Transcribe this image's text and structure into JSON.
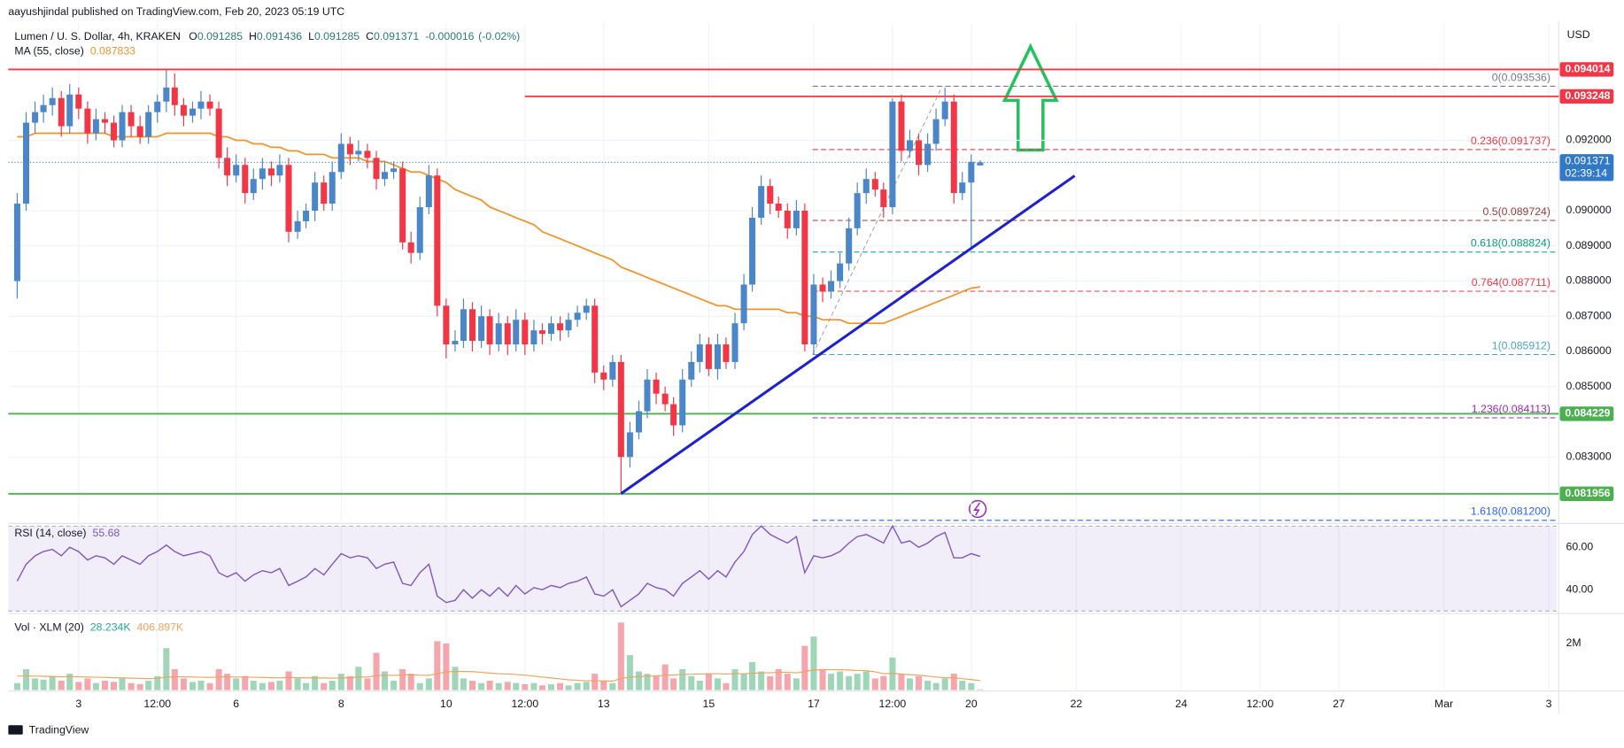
{
  "header": "aayushjindal published on TradingView.com, Feb 20, 2023 05:19 UTC",
  "footer": "TradingView",
  "chart_data": {
    "type": "candlestick",
    "title": "Lumen / U. S. Dollar, 4h, KRAKEN",
    "y_axis_label": "USD",
    "up_color": "#4a86c8",
    "down_color": "#f23645",
    "ohlc_prefixes": [
      "O",
      "H",
      "L",
      "C"
    ],
    "change": -1.6e-05,
    "change_pct_label": "(-0.02%)",
    "current_time_label": "02:39:14",
    "x": [
      1.83,
      2,
      2.17,
      2.33,
      2.5,
      2.67,
      2.83,
      3,
      3.17,
      3.33,
      3.5,
      3.67,
      3.83,
      4,
      4.17,
      4.33,
      4.5,
      4.67,
      4.83,
      5,
      5.17,
      5.33,
      5.5,
      5.67,
      5.83,
      6,
      6.17,
      6.33,
      6.5,
      6.67,
      6.83,
      7,
      7.17,
      7.33,
      7.5,
      7.67,
      7.83,
      8,
      8.17,
      8.33,
      8.5,
      8.67,
      8.83,
      9,
      9.17,
      9.33,
      9.5,
      9.67,
      9.83,
      10,
      10.17,
      10.33,
      10.5,
      10.67,
      10.83,
      11,
      11.17,
      11.33,
      11.5,
      11.67,
      11.83,
      12,
      12.17,
      12.33,
      12.5,
      12.67,
      12.83,
      13,
      13.17,
      13.33,
      13.5,
      13.67,
      13.83,
      14,
      14.17,
      14.33,
      14.5,
      14.67,
      14.83,
      15,
      15.17,
      15.33,
      15.5,
      15.67,
      15.83,
      16,
      16.17,
      16.33,
      16.5,
      16.67,
      16.83,
      17,
      17.17,
      17.33,
      17.5,
      17.67,
      17.83,
      18,
      18.17,
      18.33,
      18.5,
      18.67,
      18.83,
      19,
      19.17,
      19.33,
      19.5,
      19.67,
      19.83,
      20,
      20.17
    ],
    "open": [
      0.088,
      0.0902,
      0.0925,
      0.0928,
      0.093,
      0.0932,
      0.0924,
      0.0933,
      0.0929,
      0.0922,
      0.0926,
      0.0925,
      0.092,
      0.0928,
      0.0924,
      0.0921,
      0.0928,
      0.0931,
      0.0935,
      0.093,
      0.0927,
      0.0929,
      0.0931,
      0.0929,
      0.0915,
      0.091,
      0.0913,
      0.0905,
      0.0909,
      0.0912,
      0.091,
      0.0913,
      0.0894,
      0.0897,
      0.09,
      0.0908,
      0.0902,
      0.0911,
      0.0919,
      0.0916,
      0.0917,
      0.0915,
      0.0909,
      0.0911,
      0.0912,
      0.0891,
      0.0888,
      0.0901,
      0.091,
      0.0873,
      0.0862,
      0.0863,
      0.0872,
      0.0863,
      0.087,
      0.0862,
      0.0868,
      0.0862,
      0.0869,
      0.0862,
      0.0866,
      0.0865,
      0.0868,
      0.0866,
      0.0869,
      0.0871,
      0.0873,
      0.0854,
      0.0852,
      0.0857,
      0.083,
      0.0837,
      0.0843,
      0.0852,
      0.0848,
      0.0845,
      0.0839,
      0.0852,
      0.0857,
      0.0862,
      0.0855,
      0.0862,
      0.0857,
      0.0868,
      0.0879,
      0.0898,
      0.0907,
      0.0902,
      0.09,
      0.0895,
      0.09,
      0.0862,
      0.0879,
      0.0877,
      0.088,
      0.0885,
      0.0895,
      0.0905,
      0.0909,
      0.0906,
      0.0901,
      0.0931,
      0.0917,
      0.092,
      0.0913,
      0.0919,
      0.0926,
      0.0931,
      0.0905,
      0.0908,
      0.091285
    ],
    "high": [
      0.0905,
      0.0928,
      0.0931,
      0.0933,
      0.0935,
      0.0934,
      0.0936,
      0.0935,
      0.0931,
      0.0929,
      0.0928,
      0.0927,
      0.093,
      0.093,
      0.0927,
      0.093,
      0.0933,
      0.094,
      0.0939,
      0.0932,
      0.0931,
      0.0934,
      0.0933,
      0.0931,
      0.0918,
      0.0916,
      0.0915,
      0.0912,
      0.0915,
      0.0914,
      0.0916,
      0.0915,
      0.09,
      0.0902,
      0.0911,
      0.091,
      0.0914,
      0.0922,
      0.0921,
      0.092,
      0.0919,
      0.0917,
      0.0914,
      0.0914,
      0.0914,
      0.0894,
      0.0904,
      0.0913,
      0.0912,
      0.0875,
      0.0866,
      0.0875,
      0.0874,
      0.0873,
      0.0872,
      0.0871,
      0.087,
      0.0872,
      0.0871,
      0.0869,
      0.0868,
      0.087,
      0.087,
      0.0871,
      0.0873,
      0.0875,
      0.0875,
      0.0856,
      0.0859,
      0.0859,
      0.084,
      0.0846,
      0.0855,
      0.0854,
      0.085,
      0.0847,
      0.0855,
      0.086,
      0.0865,
      0.0864,
      0.0865,
      0.0864,
      0.0871,
      0.0882,
      0.0901,
      0.091,
      0.0909,
      0.0904,
      0.0902,
      0.0903,
      0.0902,
      0.0882,
      0.0881,
      0.0883,
      0.0888,
      0.0898,
      0.0908,
      0.0912,
      0.0911,
      0.0908,
      0.0932,
      0.0933,
      0.0923,
      0.0922,
      0.0922,
      0.0929,
      0.0935,
      0.0933,
      0.0911,
      0.0916,
      0.091436
    ],
    "low": [
      0.0875,
      0.09,
      0.0922,
      0.0925,
      0.0927,
      0.0921,
      0.0922,
      0.0926,
      0.0919,
      0.092,
      0.0922,
      0.0918,
      0.0918,
      0.0921,
      0.0919,
      0.0919,
      0.0925,
      0.0928,
      0.0927,
      0.0924,
      0.0925,
      0.0926,
      0.0927,
      0.0912,
      0.0907,
      0.0908,
      0.0902,
      0.0903,
      0.0906,
      0.0907,
      0.0908,
      0.0891,
      0.0892,
      0.0895,
      0.0897,
      0.09,
      0.09,
      0.0909,
      0.0913,
      0.0914,
      0.0912,
      0.0906,
      0.0907,
      0.0909,
      0.0889,
      0.0885,
      0.0886,
      0.0899,
      0.087,
      0.0858,
      0.086,
      0.0861,
      0.086,
      0.0861,
      0.0859,
      0.086,
      0.0859,
      0.086,
      0.0859,
      0.086,
      0.0862,
      0.0863,
      0.0863,
      0.0864,
      0.0867,
      0.0869,
      0.0851,
      0.0849,
      0.085,
      0.08196,
      0.0827,
      0.0835,
      0.0841,
      0.0845,
      0.0843,
      0.0836,
      0.0837,
      0.085,
      0.0854,
      0.0853,
      0.0852,
      0.0855,
      0.0855,
      0.0866,
      0.0877,
      0.0896,
      0.0899,
      0.0898,
      0.0892,
      0.0893,
      0.086,
      0.0859,
      0.0874,
      0.0875,
      0.0878,
      0.0883,
      0.0893,
      0.0902,
      0.0904,
      0.0898,
      0.0899,
      0.0914,
      0.0915,
      0.091,
      0.0911,
      0.0917,
      0.0924,
      0.0902,
      0.0903,
      0.0889,
      0.091285
    ],
    "close": [
      0.0902,
      0.0925,
      0.0928,
      0.093,
      0.0932,
      0.0924,
      0.0933,
      0.0929,
      0.0922,
      0.0926,
      0.0925,
      0.092,
      0.0928,
      0.0924,
      0.0921,
      0.0928,
      0.0931,
      0.0935,
      0.093,
      0.0927,
      0.0929,
      0.0931,
      0.0929,
      0.0915,
      0.091,
      0.0913,
      0.0905,
      0.0909,
      0.0912,
      0.091,
      0.0913,
      0.0894,
      0.0897,
      0.09,
      0.0908,
      0.0902,
      0.0911,
      0.0919,
      0.0916,
      0.0917,
      0.0915,
      0.0909,
      0.0911,
      0.0912,
      0.0891,
      0.0888,
      0.0901,
      0.091,
      0.0873,
      0.0862,
      0.0863,
      0.0872,
      0.0863,
      0.087,
      0.0862,
      0.0868,
      0.0862,
      0.0869,
      0.0862,
      0.0866,
      0.0865,
      0.0868,
      0.0866,
      0.0869,
      0.0871,
      0.0873,
      0.0854,
      0.0852,
      0.0857,
      0.083,
      0.0837,
      0.0843,
      0.0852,
      0.0848,
      0.0845,
      0.0839,
      0.0852,
      0.0857,
      0.0862,
      0.0855,
      0.0862,
      0.0857,
      0.0868,
      0.0879,
      0.0898,
      0.0907,
      0.0902,
      0.09,
      0.0895,
      0.09,
      0.0862,
      0.0879,
      0.0877,
      0.088,
      0.0885,
      0.0895,
      0.0905,
      0.0909,
      0.0906,
      0.0901,
      0.0931,
      0.0917,
      0.092,
      0.0913,
      0.0919,
      0.0926,
      0.0931,
      0.0905,
      0.0908,
      0.091387,
      0.091371
    ],
    "ma": {
      "name": "MA (55, close)",
      "color": "#f0932b",
      "values": [
        0.0921,
        0.0921,
        0.0922,
        0.0922,
        0.0922,
        0.0922,
        0.0922,
        0.0922,
        0.0922,
        0.0922,
        0.0922,
        0.0921,
        0.0921,
        0.0921,
        0.0921,
        0.0921,
        0.0921,
        0.0922,
        0.0922,
        0.0922,
        0.0922,
        0.0922,
        0.0922,
        0.0921,
        0.0921,
        0.092,
        0.092,
        0.0919,
        0.0919,
        0.0918,
        0.0918,
        0.0917,
        0.0917,
        0.0916,
        0.0916,
        0.0916,
        0.0915,
        0.0915,
        0.0915,
        0.0915,
        0.0914,
        0.0914,
        0.0914,
        0.0913,
        0.0912,
        0.0911,
        0.0911,
        0.091,
        0.0909,
        0.0908,
        0.0906,
        0.0905,
        0.0904,
        0.0903,
        0.0901,
        0.09,
        0.0899,
        0.0898,
        0.0897,
        0.0896,
        0.0894,
        0.0893,
        0.0892,
        0.0891,
        0.089,
        0.0889,
        0.0888,
        0.0887,
        0.0886,
        0.0884,
        0.0883,
        0.0882,
        0.0881,
        0.088,
        0.0879,
        0.0878,
        0.0877,
        0.0876,
        0.0875,
        0.0874,
        0.0873,
        0.0873,
        0.0872,
        0.0872,
        0.0872,
        0.0872,
        0.0872,
        0.0872,
        0.0871,
        0.0871,
        0.087,
        0.087,
        0.0869,
        0.0869,
        0.0869,
        0.0868,
        0.0868,
        0.0868,
        0.0868,
        0.0868,
        0.0869,
        0.087,
        0.0871,
        0.0872,
        0.0873,
        0.0874,
        0.0875,
        0.0876,
        0.0877,
        0.0878,
        0.087833
      ]
    },
    "xlim": [
      1.66,
      31.15
    ],
    "ylim": [
      0.08114,
      0.09534
    ],
    "grid": true,
    "xticks": [
      3,
      {
        "value": 4.5,
        "label": "12:00"
      },
      6,
      8,
      10,
      {
        "value": 11.5,
        "label": "12:00"
      },
      13,
      15,
      17,
      {
        "value": 18.5,
        "label": "12:00"
      },
      20,
      22,
      24,
      {
        "value": 25.5,
        "label": "12:00"
      },
      27,
      {
        "value": 29,
        "label": "Mar"
      },
      {
        "value": 31,
        "label": "3"
      }
    ],
    "yticks": [
      {
        "value": 0.092,
        "label": "0.092000"
      },
      {
        "value": 0.09,
        "label": "0.090000"
      },
      {
        "value": 0.089,
        "label": "0.089000"
      },
      {
        "value": 0.088,
        "label": "0.088000"
      },
      {
        "value": 0.087,
        "label": "0.087000"
      },
      {
        "value": 0.086,
        "label": "0.086000"
      },
      {
        "value": 0.085,
        "label": "0.085000"
      },
      {
        "value": 0.083,
        "label": "0.083000"
      }
    ],
    "levels": [
      {
        "value": 0.094014,
        "color": "#f23645"
      },
      {
        "value": 0.093248,
        "color": "#f23645",
        "x_start": 11.5
      },
      {
        "value": 0.084229,
        "color": "#4caf50"
      },
      {
        "value": 0.081956,
        "color": "#4caf50"
      }
    ],
    "fib": {
      "x": [
        16.98,
        19.45
      ],
      "levels": [
        {
          "value": 0.093536,
          "label": "0(0.093536)",
          "color": "#787b86"
        },
        {
          "value": 0.091737,
          "label": "0.236(0.091737)",
          "color": "#f23645"
        },
        {
          "value": 0.089724,
          "label": "0.5(0.089724)",
          "color": "#9a3b3b"
        },
        {
          "value": 0.088824,
          "label": "0.618(0.088824)",
          "color": "#089981"
        },
        {
          "value": 0.087711,
          "label": "0.764(0.087711)",
          "color": "#f23645"
        },
        {
          "value": 0.085912,
          "label": "1(0.085912)",
          "color": "#4aa3b8"
        },
        {
          "value": 0.084113,
          "label": "1.236(0.084113)",
          "color": "#9c27b0"
        },
        {
          "value": 0.0812,
          "label": "1.618(0.081200)",
          "color": "#2962ff"
        }
      ]
    },
    "trendline": {
      "x": [
        13.33,
        21.97
      ],
      "y": [
        0.08196,
        0.09099
      ],
      "color": "#1e22cc"
    },
    "rsi": {
      "name": "RSI (14, close)",
      "color": "#7e57c2",
      "ylim": [
        29.3,
        70.7
      ],
      "bands": [
        30,
        70
      ],
      "yticks": [
        {
          "value": 60,
          "label": "60.00"
        },
        {
          "value": 40,
          "label": "40.00"
        }
      ],
      "values": [
        44,
        52,
        56,
        58,
        59,
        56,
        60,
        58,
        54,
        56,
        55,
        52,
        56,
        54,
        52,
        56,
        58,
        61,
        58,
        56,
        57,
        58,
        56,
        48,
        46,
        48,
        44,
        47,
        49,
        48,
        50,
        42,
        44,
        46,
        50,
        47,
        52,
        57,
        55,
        56,
        55,
        50,
        52,
        53,
        43,
        42,
        48,
        52,
        37,
        34,
        35,
        40,
        36,
        40,
        37,
        41,
        37,
        42,
        38,
        41,
        40,
        42,
        41,
        43,
        44,
        46,
        38,
        37,
        40,
        32,
        35,
        38,
        43,
        41,
        40,
        37,
        43,
        46,
        49,
        45,
        49,
        46,
        53,
        58,
        66,
        70,
        66,
        64,
        62,
        65,
        48,
        56,
        55,
        56,
        58,
        62,
        65,
        66,
        64,
        62,
        70,
        62,
        63,
        60,
        62,
        65,
        67,
        55,
        55,
        57,
        55.68
      ]
    },
    "volume": {
      "name": "Vol · XLM (20)",
      "up_color": "#9fd6b8",
      "down_color": "#f4a6ac",
      "ma_color": "#f0a35e",
      "ylim": [
        0,
        3244
      ],
      "yticks": [
        {
          "value": 2000,
          "label": "2M"
        }
      ],
      "legend_labels": [
        "28.234K",
        "406.897K"
      ],
      "values": [
        300,
        900,
        500,
        450,
        600,
        400,
        700,
        350,
        500,
        300,
        400,
        350,
        500,
        300,
        250,
        400,
        600,
        1800,
        900,
        500,
        350,
        400,
        300,
        900,
        700,
        500,
        600,
        400,
        300,
        350,
        400,
        800,
        500,
        300,
        600,
        300,
        400,
        700,
        600,
        1000,
        500,
        1600,
        800,
        400,
        900,
        700,
        300,
        500,
        2100,
        2000,
        1000,
        500,
        400,
        300,
        400,
        300,
        350,
        300,
        250,
        300,
        200,
        250,
        300,
        200,
        300,
        350,
        700,
        400,
        300,
        2900,
        1500,
        800,
        700,
        600,
        1100,
        500,
        900,
        600,
        400,
        700,
        500,
        300,
        900,
        700,
        1200,
        800,
        600,
        900,
        700,
        500,
        1900,
        2300,
        900,
        700,
        800,
        600,
        700,
        800,
        500,
        600,
        1400,
        700,
        500,
        600,
        400,
        300,
        500,
        700,
        400,
        300,
        28.234
      ],
      "ma_values": [
        600,
        610,
        600,
        590,
        580,
        570,
        580,
        570,
        560,
        550,
        540,
        530,
        520,
        510,
        500,
        490,
        500,
        560,
        570,
        570,
        560,
        550,
        540,
        560,
        570,
        560,
        560,
        550,
        540,
        530,
        520,
        540,
        530,
        520,
        530,
        520,
        510,
        520,
        530,
        560,
        560,
        620,
        640,
        630,
        650,
        660,
        640,
        630,
        700,
        780,
        800,
        800,
        790,
        760,
        730,
        700,
        690,
        670,
        640,
        600,
        560,
        520,
        480,
        440,
        420,
        400,
        400,
        390,
        380,
        500,
        550,
        580,
        600,
        610,
        640,
        650,
        670,
        680,
        690,
        700,
        700,
        690,
        700,
        700,
        720,
        740,
        740,
        760,
        760,
        740,
        790,
        860,
        880,
        880,
        870,
        860,
        840,
        830,
        780,
        700,
        720,
        690,
        660,
        640,
        600,
        560,
        530,
        520,
        490,
        450,
        406.897
      ]
    }
  }
}
